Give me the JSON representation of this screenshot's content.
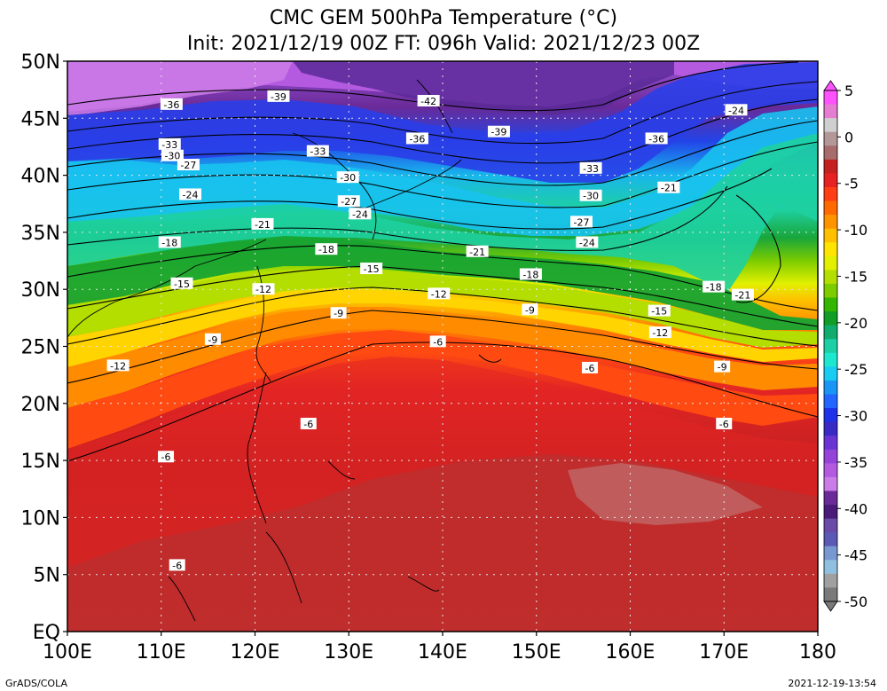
{
  "title": {
    "line1": "CMC GEM 500hPa Temperature (°C)",
    "line2": "Init: 2021/12/19 00Z  FT: 096h  Valid: 2021/12/23 00Z"
  },
  "footer": {
    "credit": "GrADS/COLA",
    "timestamp": "2021-12-19-13:54"
  },
  "map": {
    "lat_labels": [
      "50N",
      "45N",
      "40N",
      "35N",
      "30N",
      "25N",
      "20N",
      "15N",
      "10N",
      "5N",
      "EQ"
    ],
    "lon_labels": [
      "100E",
      "110E",
      "120E",
      "130E",
      "140E",
      "150E",
      "160E",
      "170E",
      "180"
    ],
    "lat_values": [
      50,
      45,
      40,
      35,
      30,
      25,
      20,
      15,
      10,
      5,
      0
    ],
    "lon_values": [
      100,
      110,
      120,
      130,
      140,
      150,
      160,
      170,
      180
    ],
    "contour_labels": [
      {
        "lon": 111.1,
        "lat": 46.2,
        "t": "-36"
      },
      {
        "lon": 122.5,
        "lat": 46.9,
        "t": "-39"
      },
      {
        "lon": 138.5,
        "lat": 46.5,
        "t": "-42"
      },
      {
        "lon": 110.9,
        "lat": 42.7,
        "t": "-33"
      },
      {
        "lon": 111.2,
        "lat": 41.7,
        "t": "-30"
      },
      {
        "lon": 112.9,
        "lat": 40.9,
        "t": "-27"
      },
      {
        "lon": 113.1,
        "lat": 38.3,
        "t": "-24"
      },
      {
        "lon": 120.8,
        "lat": 35.7,
        "t": "-21"
      },
      {
        "lon": 110.9,
        "lat": 34.1,
        "t": "-18"
      },
      {
        "lon": 112.2,
        "lat": 30.5,
        "t": "-15"
      },
      {
        "lon": 120.9,
        "lat": 30.0,
        "t": "-12"
      },
      {
        "lon": 115.5,
        "lat": 25.6,
        "t": "-9"
      },
      {
        "lon": 105.4,
        "lat": 23.3,
        "t": "-12"
      },
      {
        "lon": 126.7,
        "lat": 42.1,
        "t": "-33"
      },
      {
        "lon": 129.9,
        "lat": 39.8,
        "t": "-30"
      },
      {
        "lon": 130.0,
        "lat": 37.7,
        "t": "-27"
      },
      {
        "lon": 131.2,
        "lat": 36.6,
        "t": "-24"
      },
      {
        "lon": 127.6,
        "lat": 33.5,
        "t": "-18"
      },
      {
        "lon": 132.4,
        "lat": 31.8,
        "t": "-15"
      },
      {
        "lon": 128.9,
        "lat": 27.9,
        "t": "-9"
      },
      {
        "lon": 139.5,
        "lat": 25.4,
        "t": "-6"
      },
      {
        "lon": 137.3,
        "lat": 43.2,
        "t": "-36"
      },
      {
        "lon": 146.0,
        "lat": 43.8,
        "t": "-39"
      },
      {
        "lon": 155.8,
        "lat": 40.6,
        "t": "-33"
      },
      {
        "lon": 155.8,
        "lat": 38.2,
        "t": "-30"
      },
      {
        "lon": 154.8,
        "lat": 35.9,
        "t": "-27"
      },
      {
        "lon": 155.4,
        "lat": 34.1,
        "t": "-24"
      },
      {
        "lon": 143.7,
        "lat": 33.3,
        "t": "-21"
      },
      {
        "lon": 149.4,
        "lat": 31.3,
        "t": "-18"
      },
      {
        "lon": 139.6,
        "lat": 29.6,
        "t": "-12"
      },
      {
        "lon": 149.3,
        "lat": 28.2,
        "t": "-9"
      },
      {
        "lon": 162.8,
        "lat": 43.2,
        "t": "-36"
      },
      {
        "lon": 171.3,
        "lat": 45.7,
        "t": "-24"
      },
      {
        "lon": 164.1,
        "lat": 38.9,
        "t": "-21"
      },
      {
        "lon": 172.0,
        "lat": 29.5,
        "t": "-21"
      },
      {
        "lon": 168.9,
        "lat": 30.2,
        "t": "-18"
      },
      {
        "lon": 163.1,
        "lat": 28.1,
        "t": "-15"
      },
      {
        "lon": 163.2,
        "lat": 26.2,
        "t": "-12"
      },
      {
        "lon": 169.8,
        "lat": 23.2,
        "t": "-9"
      },
      {
        "lon": 155.7,
        "lat": 23.1,
        "t": "-6"
      },
      {
        "lon": 170.0,
        "lat": 18.2,
        "t": "-6"
      },
      {
        "lon": 125.7,
        "lat": 18.2,
        "t": "-6"
      },
      {
        "lon": 110.5,
        "lat": 15.3,
        "t": "-6"
      },
      {
        "lon": 111.7,
        "lat": 5.8,
        "t": "-6"
      }
    ]
  },
  "colorbar": {
    "labels": [
      "5",
      "0",
      "-5",
      "-10",
      "-15",
      "-20",
      "-25",
      "-30",
      "-35",
      "-40",
      "-45",
      "-50"
    ],
    "colors": [
      "#ff52ff",
      "#e57dd2",
      "#cfcfcf",
      "#b49898",
      "#a86c6c",
      "#c42121",
      "#e62222",
      "#ff3e16",
      "#ff6a00",
      "#ff9400",
      "#ffc000",
      "#ffe400",
      "#e2f000",
      "#b4dd00",
      "#7ccc00",
      "#34b600",
      "#119d26",
      "#12ad6e",
      "#1ccfa4",
      "#1ee7d0",
      "#18ccf2",
      "#1996f5",
      "#2266ff",
      "#1e32e8",
      "#3a2ac4",
      "#6a34d4",
      "#9444d8",
      "#b45ae0",
      "#cc7ce8",
      "#6a2a98",
      "#4a1a78",
      "#6a4aa8",
      "#5a5ab4",
      "#7898d2",
      "#90c0e0",
      "#a0a0a0",
      "#7a7a7a"
    ]
  },
  "colors": {
    "frame": "#000000",
    "grid": "#e6e6e6",
    "coast": "#000000"
  }
}
